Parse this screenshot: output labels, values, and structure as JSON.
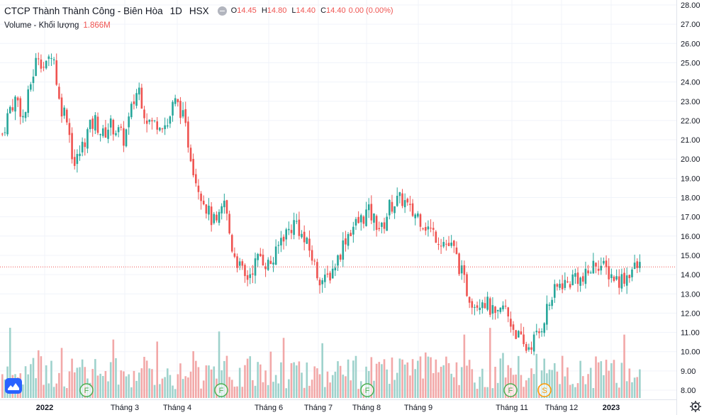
{
  "legend": {
    "title": "CTCP Thành Thành Công - Biên Hòa",
    "interval": "1D",
    "exchange": "HSX",
    "o_label": "O",
    "o_value": "14.45",
    "h_label": "H",
    "h_value": "14.80",
    "l_label": "L",
    "l_value": "14.40",
    "c_label": "C",
    "c_value": "14.40",
    "change": "0.00 (0.00%)",
    "volume_label": "Volume - Khối lượng",
    "volume_value": "1.866M"
  },
  "colors": {
    "up": "#26a69a",
    "down": "#ef5350",
    "up_vol": "#9ed2cc",
    "down_vol": "#f2a8a8",
    "dividend": "#4caf50",
    "split": "#ff9800"
  },
  "icons": {
    "settings": "gear-icon",
    "logo": "tradingview-logo-icon",
    "hide": "eye-hide-icon"
  },
  "chart_data": {
    "type": "candlestick",
    "y_range": [
      8.0,
      28.0
    ],
    "y_ticks": [
      "28.00",
      "27.00",
      "26.00",
      "25.00",
      "24.00",
      "23.00",
      "22.00",
      "21.00",
      "20.00",
      "19.00",
      "18.00",
      "17.00",
      "16.00",
      "15.00",
      "14.00",
      "13.00",
      "12.00",
      "11.00",
      "10.00",
      "9.00",
      "8.00"
    ],
    "x_labels": [
      "2022",
      "Tháng 3",
      "Tháng 4",
      "Tháng 6",
      "Tháng 7",
      "Tháng 8",
      "Tháng 9",
      "Tháng 11",
      "Tháng 12",
      "2023"
    ],
    "last_price": "14.40",
    "event_markers": [
      {
        "label": "F",
        "kind": "dividend"
      },
      {
        "label": "F",
        "kind": "dividend"
      },
      {
        "label": "F",
        "kind": "dividend"
      },
      {
        "label": "F",
        "kind": "dividend"
      },
      {
        "label": "S",
        "kind": "split"
      }
    ],
    "close_path": [
      21.3,
      22.6,
      23.2,
      22.0,
      24.0,
      25.5,
      24.6,
      25.8,
      22.8,
      22.3,
      19.6,
      20.5,
      21.5,
      22.0,
      21.2,
      21.8,
      21.5,
      21.0,
      22.5,
      23.8,
      22.2,
      21.8,
      22.0,
      21.7,
      23.0,
      22.5,
      20.8,
      19.0,
      18.0,
      17.0,
      16.5,
      17.8,
      15.5,
      14.5,
      13.7,
      14.4,
      15.0,
      14.5,
      14.8,
      16.0,
      16.3,
      16.8,
      15.8,
      15.2,
      14.0,
      13.6,
      14.2,
      15.0,
      16.0,
      16.5,
      16.8,
      17.3,
      16.8,
      16.3,
      17.5,
      17.8,
      17.9,
      17.2,
      17.1,
      16.6,
      16.2,
      15.9,
      15.6,
      15.3,
      14.2,
      13.0,
      12.5,
      12.8,
      12.3,
      11.6,
      12.4,
      11.5,
      10.8,
      10.1,
      10.5,
      11.0,
      12.2,
      13.0,
      13.6,
      13.5,
      14.0,
      13.6,
      14.2,
      14.7,
      14.3,
      14.0,
      13.7,
      13.9,
      14.3,
      14.4
    ],
    "volume_range": [
      0,
      6000000
    ],
    "volume_max_label": "1.866M"
  }
}
